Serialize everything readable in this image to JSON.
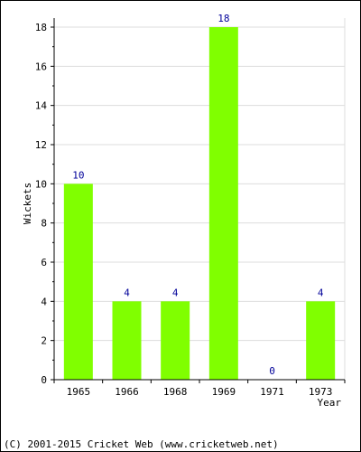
{
  "chart_data": {
    "type": "bar",
    "categories": [
      "1965",
      "1966",
      "1968",
      "1969",
      "1971",
      "1973"
    ],
    "values": [
      10,
      4,
      4,
      18,
      0,
      4
    ],
    "xlabel": "Year",
    "ylabel": "Wickets",
    "ylim": [
      0,
      18
    ],
    "yticks": [
      0,
      2,
      4,
      6,
      8,
      10,
      12,
      14,
      16,
      18
    ],
    "grid": true,
    "bar_color": "#80ff00",
    "value_label_color": "#000099"
  },
  "footer": {
    "copyright": "(C) 2001-2015 Cricket Web (www.cricketweb.net)"
  }
}
